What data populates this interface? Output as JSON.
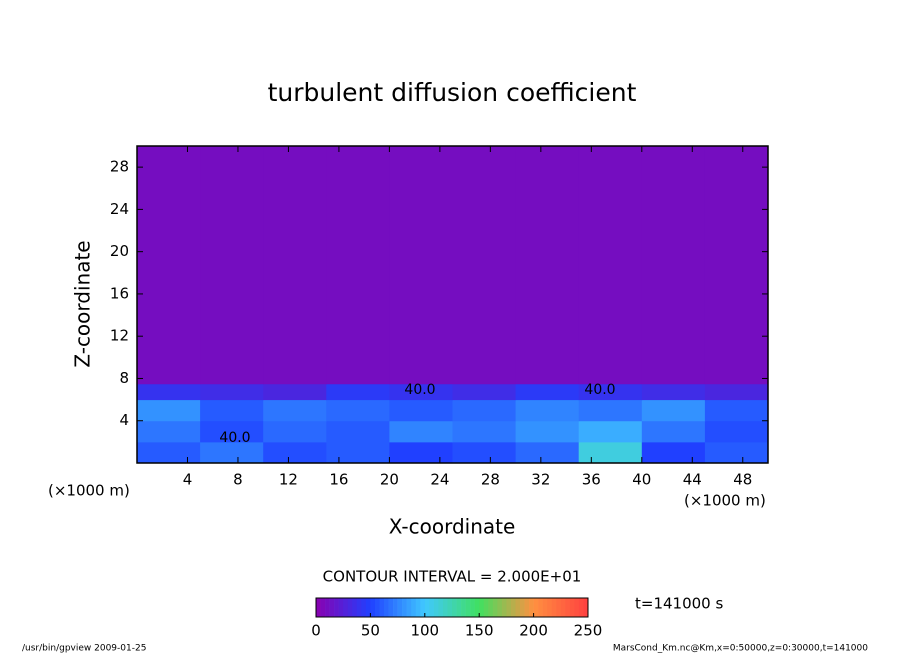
{
  "chart_data": {
    "type": "contour",
    "title": "turbulent diffusion coefficient",
    "x_label": "X-coordinate",
    "y_label": "Z-coordinate",
    "x_unit": "(×1000 m)",
    "y_unit": "(×1000 m)",
    "xlim": [
      0,
      50
    ],
    "ylim": [
      0,
      30
    ],
    "xticks": [
      4,
      8,
      12,
      16,
      20,
      24,
      28,
      32,
      36,
      40,
      44,
      48
    ],
    "yticks": [
      4,
      8,
      12,
      16,
      20,
      24,
      28
    ],
    "x_edges": [
      0,
      5,
      10,
      15,
      20,
      25,
      30,
      35,
      40,
      45,
      50
    ],
    "z_edges": [
      0,
      2,
      4,
      6,
      7.5,
      30
    ],
    "values": [
      [
        60,
        70,
        55,
        60,
        50,
        55,
        65,
        110,
        50,
        60
      ],
      [
        70,
        55,
        65,
        60,
        75,
        70,
        80,
        90,
        70,
        55
      ],
      [
        80,
        60,
        70,
        65,
        60,
        65,
        75,
        70,
        80,
        60
      ],
      [
        40,
        35,
        30,
        45,
        40,
        35,
        45,
        40,
        35,
        30
      ],
      [
        10,
        10,
        10,
        10,
        10,
        10,
        10,
        10,
        10,
        10
      ]
    ],
    "contour_labels": [
      "40.0",
      "40.0",
      "40.0"
    ],
    "contour_interval": "CONTOUR INTERVAL = 2.000E+01",
    "clim": [
      0,
      250
    ],
    "cticks": [
      0,
      50,
      100,
      150,
      200,
      250
    ],
    "colormap": [
      "#8a00b0",
      "#2040ff",
      "#40c8ff",
      "#40e060",
      "#ff9040",
      "#ff4040"
    ],
    "time_label": "t=141000 s",
    "footer_left": "/usr/bin/gpview  2009-01-25",
    "footer_right": "MarsCond_Km.nc@Km,x=0:50000,z=0:30000,t=141000"
  }
}
